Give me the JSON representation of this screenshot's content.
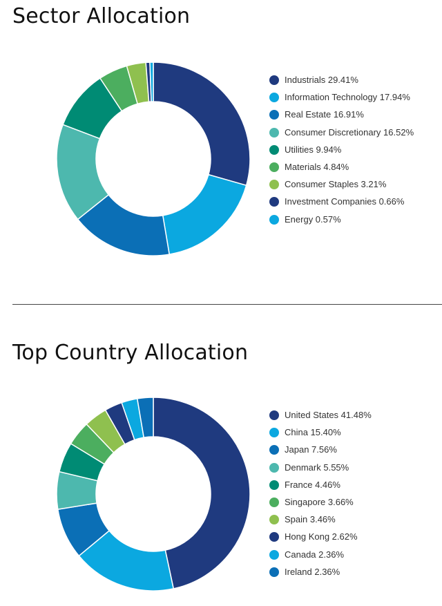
{
  "chart_data": [
    {
      "type": "pie",
      "title": "Sector Allocation",
      "unit": "%",
      "categories": [
        "Industrials",
        "Information Technology",
        "Real Estate",
        "Consumer Discretionary",
        "Utilities",
        "Materials",
        "Consumer Staples",
        "Investment Companies",
        "Energy"
      ],
      "values": [
        29.41,
        17.94,
        16.91,
        16.52,
        9.94,
        4.84,
        3.21,
        0.66,
        0.57
      ],
      "labels": [
        "Industrials 29.41%",
        "Information Technology 17.94%",
        "Real Estate 16.91%",
        "Consumer Discretionary 16.52%",
        "Utilities 9.94%",
        "Materials 4.84%",
        "Consumer Staples 3.21%",
        "Investment Companies 0.66%",
        "Energy 0.57%"
      ],
      "colors": [
        "#1f3a7f",
        "#0ba8e0",
        "#0b6fb6",
        "#4db8ae",
        "#008b74",
        "#4cae5f",
        "#8fc04f",
        "#1f3a7f",
        "#0ba8e0"
      ],
      "legend_position": "right",
      "donut": true
    },
    {
      "type": "pie",
      "title": "Top Country Allocation",
      "unit": "%",
      "categories": [
        "United States",
        "China",
        "Japan",
        "Denmark",
        "France",
        "Singapore",
        "Spain",
        "Hong Kong",
        "Canada",
        "Ireland"
      ],
      "values": [
        41.48,
        15.4,
        7.56,
        5.55,
        4.46,
        3.66,
        3.46,
        2.62,
        2.36,
        2.36
      ],
      "labels": [
        "United States 41.48%",
        "China 15.40%",
        "Japan 7.56%",
        "Denmark 5.55%",
        "France 4.46%",
        "Singapore 3.66%",
        "Spain 3.46%",
        "Hong Kong 2.62%",
        "Canada 2.36%",
        "Ireland 2.36%"
      ],
      "colors": [
        "#1f3a7f",
        "#0ba8e0",
        "#0b6fb6",
        "#4db8ae",
        "#008b74",
        "#4cae5f",
        "#8fc04f",
        "#1f3a7f",
        "#0ba8e0",
        "#0b6fb6"
      ],
      "legend_position": "right",
      "donut": true
    }
  ]
}
